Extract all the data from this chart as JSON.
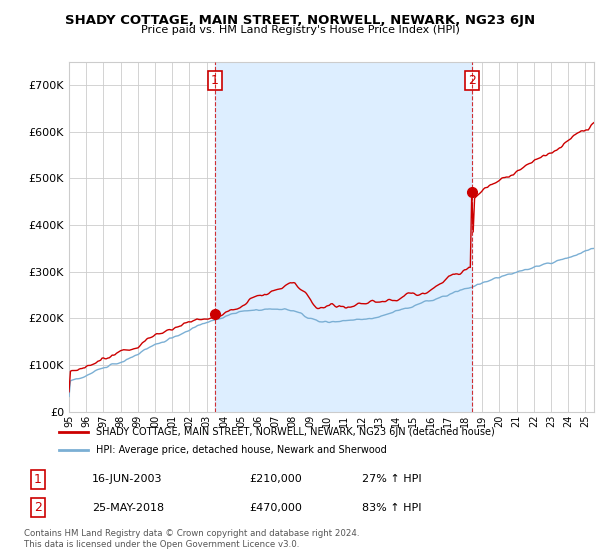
{
  "title": "SHADY COTTAGE, MAIN STREET, NORWELL, NEWARK, NG23 6JN",
  "subtitle": "Price paid vs. HM Land Registry's House Price Index (HPI)",
  "ylim": [
    0,
    750000
  ],
  "yticks": [
    0,
    100000,
    200000,
    300000,
    400000,
    500000,
    600000,
    700000
  ],
  "xlim_start": 1995.0,
  "xlim_end": 2025.5,
  "red_color": "#cc0000",
  "blue_color": "#7bafd4",
  "shade_color": "#ddeeff",
  "transaction1_x": 2003.46,
  "transaction1_y": 210000,
  "transaction1_label": "1",
  "transaction2_x": 2018.4,
  "transaction2_y": 470000,
  "transaction2_label": "2",
  "legend_red_label": "SHADY COTTAGE, MAIN STREET, NORWELL, NEWARK, NG23 6JN (detached house)",
  "legend_blue_label": "HPI: Average price, detached house, Newark and Sherwood",
  "annotation1_num": "1",
  "annotation1_date": "16-JUN-2003",
  "annotation1_price": "£210,000",
  "annotation1_hpi": "27% ↑ HPI",
  "annotation2_num": "2",
  "annotation2_date": "25-MAY-2018",
  "annotation2_price": "£470,000",
  "annotation2_hpi": "83% ↑ HPI",
  "footer": "Contains HM Land Registry data © Crown copyright and database right 2024.\nThis data is licensed under the Open Government Licence v3.0.",
  "bg_color": "#ffffff",
  "grid_color": "#cccccc"
}
